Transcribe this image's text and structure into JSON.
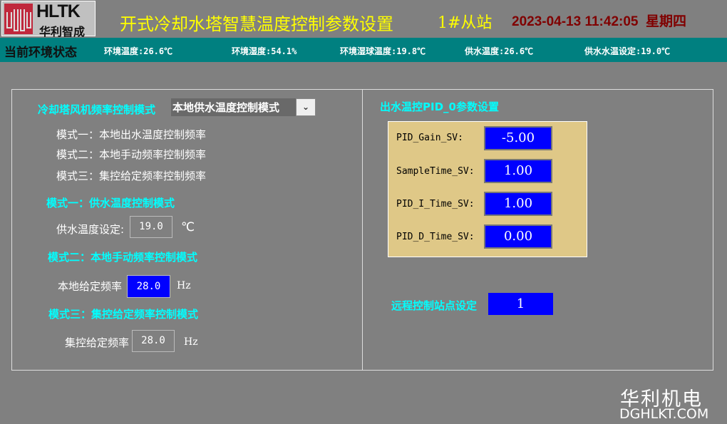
{
  "header": {
    "logo_en": "HLTK",
    "logo_cn": "华利智成",
    "title": "开式冷却水塔智慧温度控制参数设置",
    "station": "1#从站",
    "datetime": "2023-04-13 11:42:05",
    "weekday": "星期四"
  },
  "env": {
    "label": "当前环境状态",
    "items": [
      "环境温度:26.6℃",
      "环境湿度:54.1%",
      "环境湿球温度:19.8℃",
      "供水温度:26.6℃",
      "供水水温设定:19.0℃"
    ]
  },
  "left": {
    "mode_label": "冷却塔风机频率控制模式",
    "mode_selected": "本地供水温度控制模式",
    "modes": [
      "模式一：本地出水温度控制频率",
      "模式二：本地手动频率控制频率",
      "模式三：集控给定频率控制频率"
    ],
    "m1_title": "模式一：供水温度控制模式",
    "m1_label": "供水温度设定:",
    "m1_value": "19.0",
    "m1_unit": "℃",
    "m2_title": "模式二：本地手动频率控制模式",
    "m2_label": "本地给定频率",
    "m2_value": "28.0",
    "m2_unit": "Hz",
    "m3_title": "模式三：集控给定频率控制模式",
    "m3_label": "集控给定频率",
    "m3_value": "28.0",
    "m3_unit": "Hz"
  },
  "right": {
    "pid_title": "出水温控PID_0参数设置",
    "pid": [
      {
        "label": "PID_Gain_SV:",
        "value": "-5.00"
      },
      {
        "label": "SampleTime_SV:",
        "value": "1.00"
      },
      {
        "label": "PID_I_Time_SV:",
        "value": "1.00"
      },
      {
        "label": "PID_D_Time_SV:",
        "value": "0.00"
      }
    ],
    "remote_label": "远程控制站点设定",
    "remote_value": "1"
  },
  "footer": {
    "brand_cn": "华利机电",
    "brand_url": "DGHLKT.COM"
  },
  "colors": {
    "background": "#808080",
    "env_bar": "#008080",
    "title": "#ffff00",
    "datetime": "#800000",
    "section": "#00ffff",
    "input_blue": "#0000ff",
    "pid_panel": "#dfc887"
  }
}
